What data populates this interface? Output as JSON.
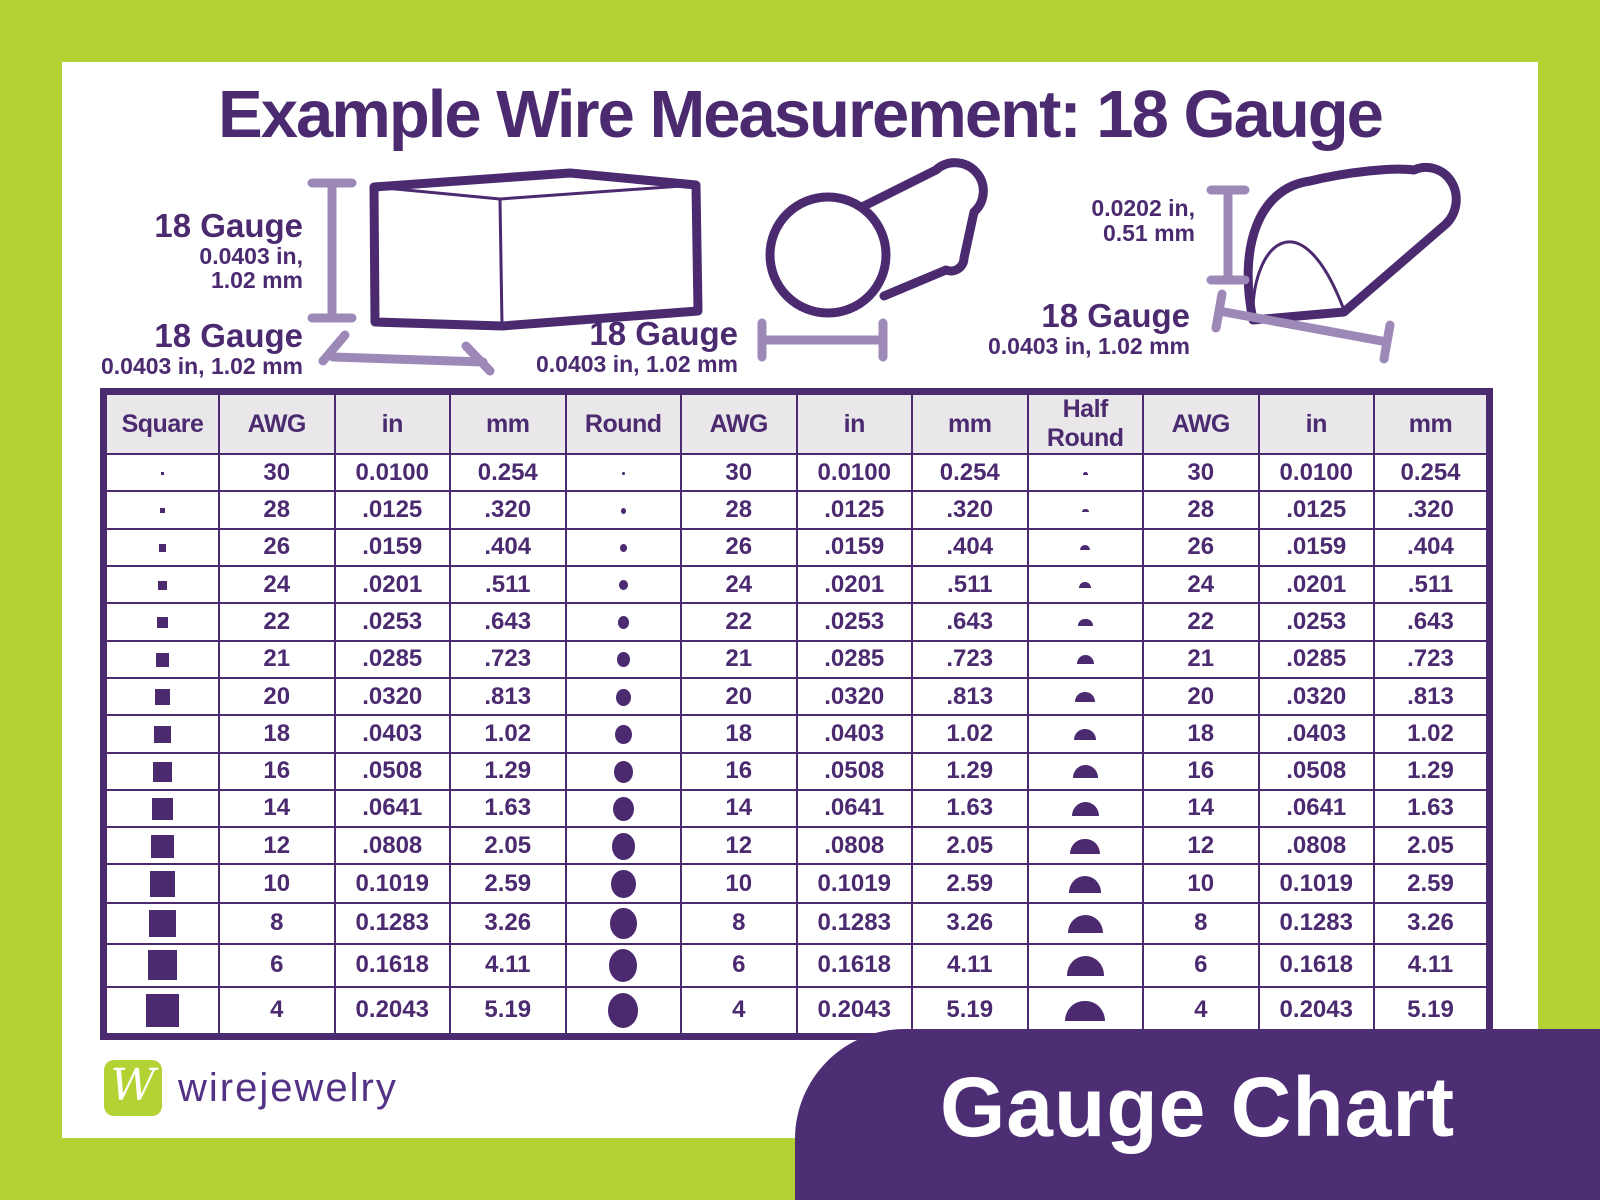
{
  "title": "Example Wire Measurement: 18 Gauge",
  "colors": {
    "green": "#b3d234",
    "purple": "#4b2a70",
    "light_purple": "#9c89b8",
    "header_bg": "#e9e7e9",
    "white": "#ffffff"
  },
  "illustrations": {
    "square": {
      "height_label": {
        "title": "18 Gauge",
        "line1": "0.0403 in,",
        "line2": "1.02 mm"
      },
      "width_label": {
        "title": "18 Gauge",
        "sub": "0.0403 in, 1.02 mm"
      }
    },
    "round": {
      "label": {
        "title": "18 Gauge",
        "sub": "0.0403 in, 1.02 mm"
      }
    },
    "half_round": {
      "height_label": {
        "line1": "0.0202 in,",
        "line2": "0.51 mm"
      },
      "width_label": {
        "title": "18 Gauge",
        "sub": "0.0403 in, 1.02 mm"
      }
    }
  },
  "table": {
    "headers": [
      "Square",
      "AWG",
      "in",
      "mm",
      "Round",
      "AWG",
      "in",
      "mm",
      "Half Round",
      "AWG",
      "in",
      "mm"
    ]
  },
  "chart_data": {
    "type": "table",
    "title": "Gauge Chart",
    "sections": [
      "Square",
      "Round",
      "Half Round"
    ],
    "columns_per_section": [
      "AWG",
      "in",
      "mm"
    ],
    "rows": [
      {
        "awg": "30",
        "in": "0.0100",
        "mm": "0.254"
      },
      {
        "awg": "28",
        "in": ".0125",
        "mm": ".320"
      },
      {
        "awg": "26",
        "in": ".0159",
        "mm": ".404"
      },
      {
        "awg": "24",
        "in": ".0201",
        "mm": ".511"
      },
      {
        "awg": "22",
        "in": ".0253",
        "mm": ".643"
      },
      {
        "awg": "21",
        "in": ".0285",
        "mm": ".723"
      },
      {
        "awg": "20",
        "in": ".0320",
        "mm": ".813"
      },
      {
        "awg": "18",
        "in": ".0403",
        "mm": "1.02"
      },
      {
        "awg": "16",
        "in": ".0508",
        "mm": "1.29"
      },
      {
        "awg": "14",
        "in": ".0641",
        "mm": "1.63"
      },
      {
        "awg": "12",
        "in": ".0808",
        "mm": "2.05"
      },
      {
        "awg": "10",
        "in": "0.1019",
        "mm": "2.59"
      },
      {
        "awg": "8",
        "in": "0.1283",
        "mm": "3.26"
      },
      {
        "awg": "6",
        "in": "0.1618",
        "mm": "4.11"
      },
      {
        "awg": "4",
        "in": "0.2043",
        "mm": "5.19"
      }
    ]
  },
  "footer": {
    "logo_monogram": "W",
    "logo_text": "wirejewelry",
    "banner_label": "Gauge Chart"
  }
}
